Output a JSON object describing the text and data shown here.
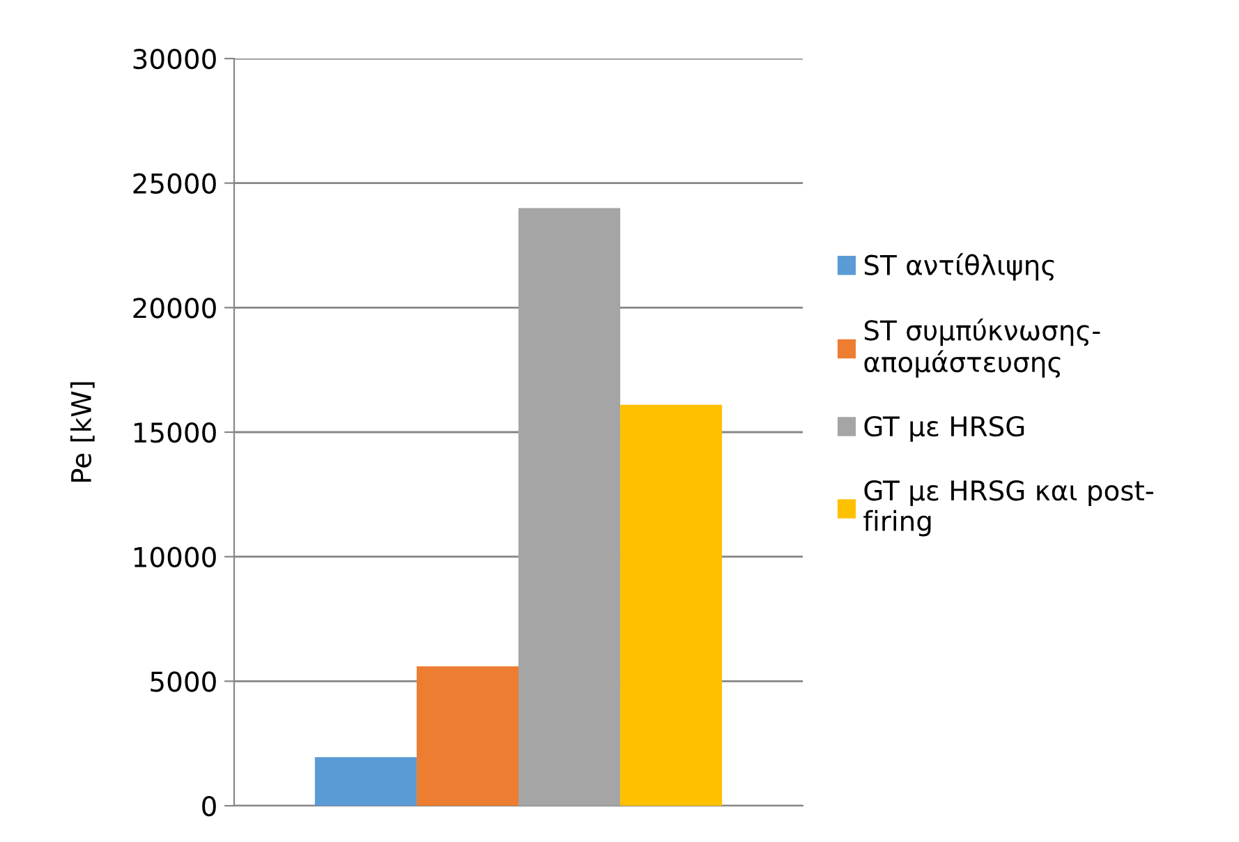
{
  "chart_data": {
    "type": "bar",
    "ylabel": "Pe [kW]",
    "categories": [
      null
    ],
    "series": [
      {
        "name": "ST αντίθλιψης",
        "color": "#5b9bd5",
        "values": [
          1950
        ]
      },
      {
        "name": "ST συμπύκνωσης-απομάστευσης",
        "color": "#ed7d31",
        "values": [
          5600
        ]
      },
      {
        "name": "GT με HRSG",
        "color": "#a5a5a5",
        "values": [
          24000
        ]
      },
      {
        "name": "GT με HRSG και post-firing",
        "color": "#ffc000",
        "values": [
          16100
        ]
      }
    ],
    "ylim": [
      0,
      30000
    ],
    "yticks": [
      0,
      5000,
      10000,
      15000,
      20000,
      25000,
      30000
    ],
    "grid": "y",
    "legend": "right"
  }
}
